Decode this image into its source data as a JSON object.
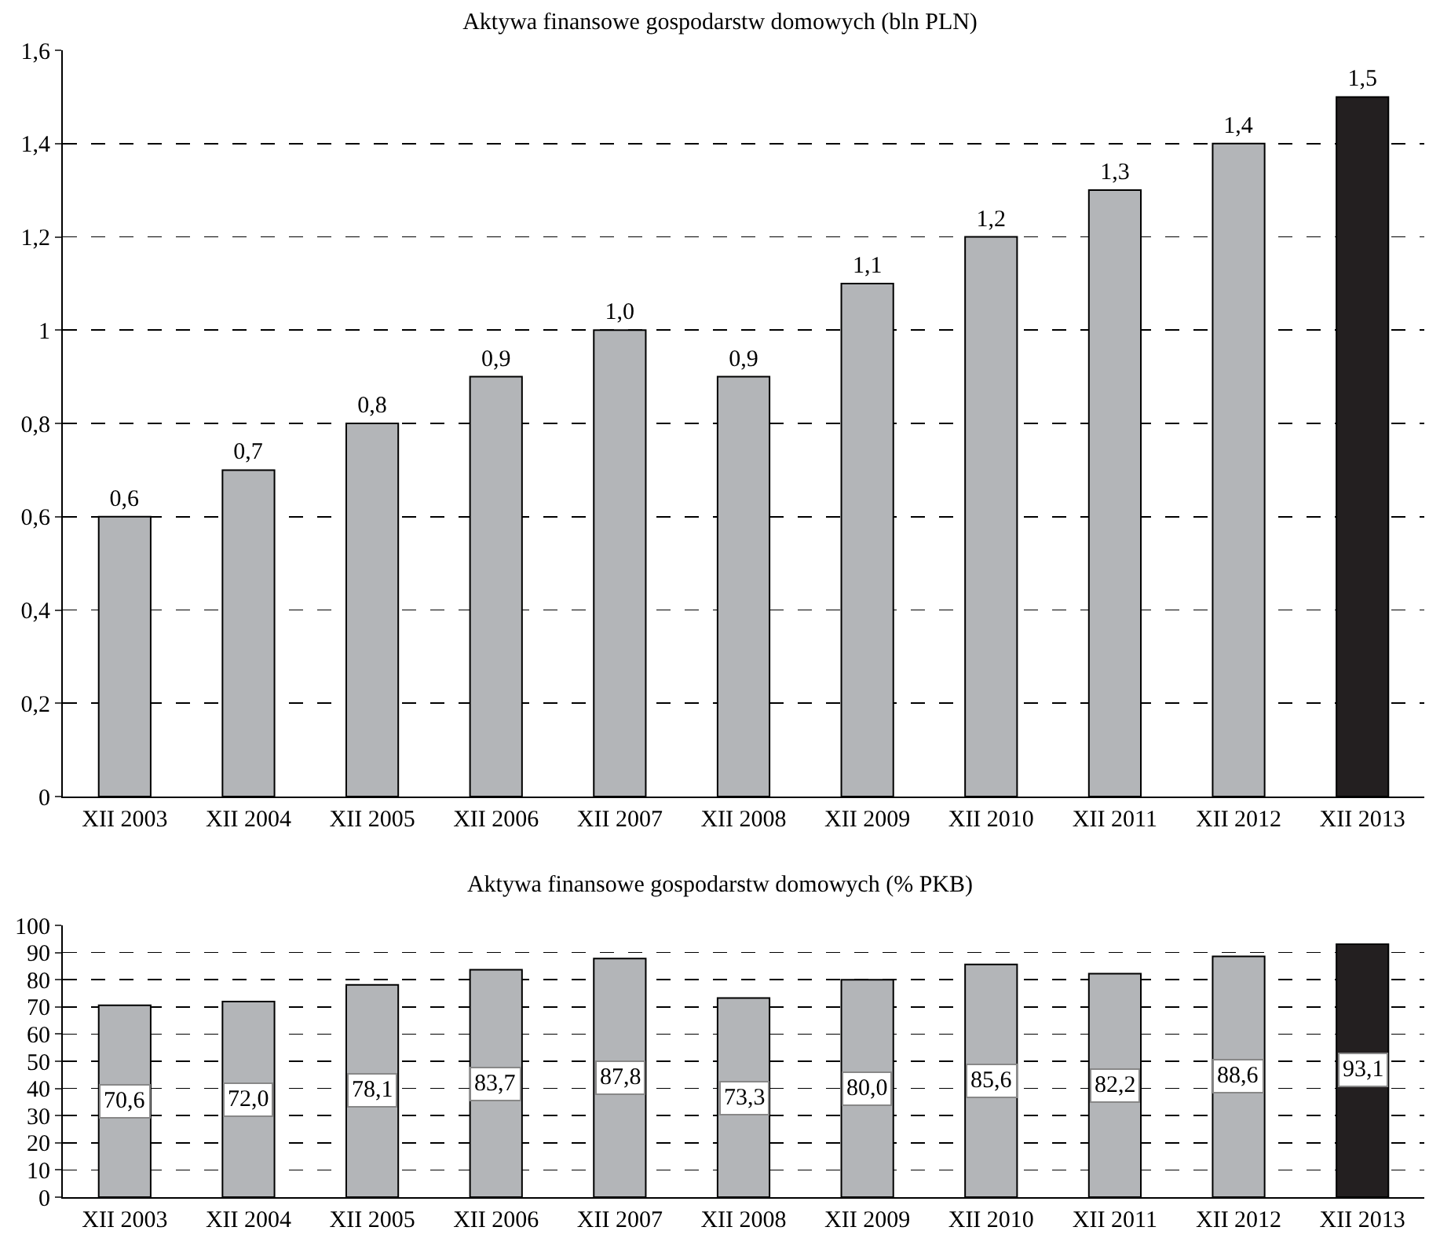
{
  "chart_data": [
    {
      "type": "bar",
      "title": "Aktywa finansowe gospodarstw domowych (bln PLN)",
      "categories": [
        "XII 2003",
        "XII 2004",
        "XII 2005",
        "XII 2006",
        "XII 2007",
        "XII 2008",
        "XII 2009",
        "XII 2010",
        "XII 2011",
        "XII 2012",
        "XII 2013"
      ],
      "values": [
        0.6,
        0.7,
        0.8,
        0.9,
        1.0,
        0.9,
        1.1,
        1.2,
        1.3,
        1.4,
        1.5
      ],
      "value_labels": [
        "0,6",
        "0,7",
        "0,8",
        "0,9",
        "1,0",
        "0,9",
        "1,1",
        "1,2",
        "1,3",
        "1,4",
        "1,5"
      ],
      "colors": [
        "#b3b5b8",
        "#b3b5b8",
        "#b3b5b8",
        "#b3b5b8",
        "#b3b5b8",
        "#b3b5b8",
        "#b3b5b8",
        "#b3b5b8",
        "#b3b5b8",
        "#b3b5b8",
        "#231f20"
      ],
      "ylim": [
        0,
        1.6
      ],
      "yticks": [
        0,
        {
          "value": 0.2,
          "label": "0,2"
        },
        {
          "value": 0.4,
          "label": "0,4"
        },
        {
          "value": 0.6,
          "label": "0,6"
        },
        {
          "value": 0.8,
          "label": "0,8"
        },
        1,
        {
          "value": 1.2,
          "label": "1,2"
        },
        {
          "value": 1.4,
          "label": "1,4"
        },
        {
          "value": 1.6,
          "label": "1,6"
        }
      ],
      "grid": "y",
      "line_style": "dashed"
    },
    {
      "type": "bar",
      "title": "Aktywa finansowe gospodarstw domowych (% PKB)",
      "categories": [
        "XII 2003",
        "XII 2004",
        "XII 2005",
        "XII 2006",
        "XII 2007",
        "XII 2008",
        "XII 2009",
        "XII 2010",
        "XII 2011",
        "XII 2012",
        "XII 2013"
      ],
      "values": [
        70.6,
        72.0,
        78.1,
        83.7,
        87.8,
        73.3,
        80.0,
        85.6,
        82.2,
        88.6,
        93.1
      ],
      "value_labels": [
        "70,6",
        "72,0",
        "78,1",
        "83,7",
        "87,8",
        "73,3",
        "80,0",
        "85,6",
        "82,2",
        "88,6",
        "93,1"
      ],
      "colors": [
        "#b3b5b8",
        "#b3b5b8",
        "#b3b5b8",
        "#b3b5b8",
        "#b3b5b8",
        "#b3b5b8",
        "#b3b5b8",
        "#b3b5b8",
        "#b3b5b8",
        "#b3b5b8",
        "#231f20"
      ],
      "ylim": [
        0,
        100
      ],
      "yticks": [
        0,
        10,
        20,
        30,
        40,
        50,
        60,
        70,
        80,
        90,
        100
      ],
      "grid": "y",
      "line_style": "dashed"
    }
  ]
}
